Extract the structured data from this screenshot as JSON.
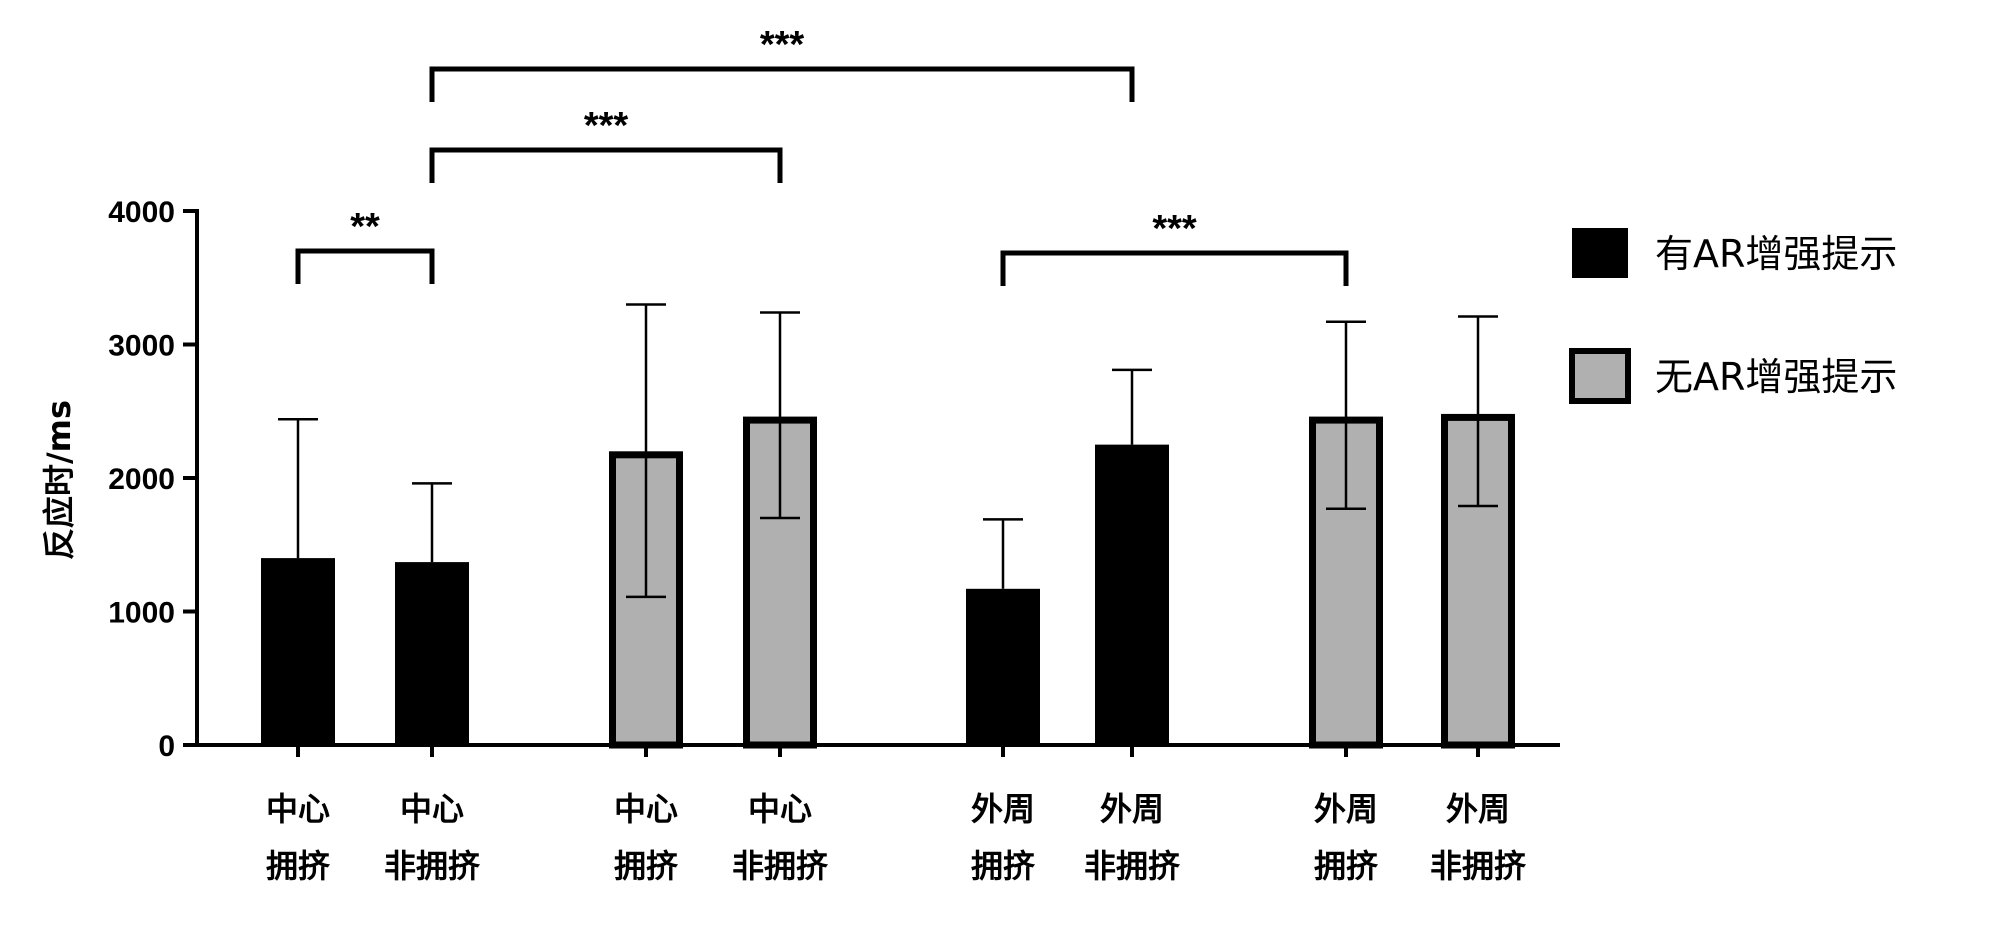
{
  "chart_data": {
    "type": "bar",
    "ylabel": "反应时/ms",
    "ylim": [
      0,
      4000
    ],
    "yticks": [
      0,
      1000,
      2000,
      3000,
      4000
    ],
    "legend_position": "right",
    "series": [
      {
        "name": "有AR增强提示",
        "color": "#000000"
      },
      {
        "name": "无AR增强提示",
        "color": "#b0b0b0"
      }
    ],
    "bars": [
      {
        "label_line1": "中心",
        "label_line2": "拥挤",
        "series": 0,
        "value": 1400,
        "error_upper": 2440,
        "error_lower": 1400
      },
      {
        "label_line1": "中心",
        "label_line2": "非拥挤",
        "series": 0,
        "value": 1370,
        "error_upper": 1960,
        "error_lower": 1370
      },
      {
        "label_line1": "中心",
        "label_line2": "拥挤",
        "series": 1,
        "value": 2200,
        "error_upper": 3300,
        "error_lower": 1110
      },
      {
        "label_line1": "中心",
        "label_line2": "非拥挤",
        "series": 1,
        "value": 2460,
        "error_upper": 3240,
        "error_lower": 1700
      },
      {
        "label_line1": "外周",
        "label_line2": "拥挤",
        "series": 0,
        "value": 1170,
        "error_upper": 1690,
        "error_lower": 1170
      },
      {
        "label_line1": "外周",
        "label_line2": "非拥挤",
        "series": 0,
        "value": 2250,
        "error_upper": 2810,
        "error_lower": 2250
      },
      {
        "label_line1": "外周",
        "label_line2": "拥挤",
        "series": 1,
        "value": 2460,
        "error_upper": 3170,
        "error_lower": 1770
      },
      {
        "label_line1": "外周",
        "label_line2": "非拥挤",
        "series": 1,
        "value": 2480,
        "error_upper": 3210,
        "error_lower": 1790
      }
    ],
    "significance": [
      {
        "from": 0,
        "to": 1,
        "label": "**"
      },
      {
        "from": 1,
        "to": 2,
        "label": "***"
      },
      {
        "from": 1,
        "to": 3,
        "label": "***"
      },
      {
        "from": 4,
        "to": 6,
        "label": "***"
      }
    ]
  }
}
